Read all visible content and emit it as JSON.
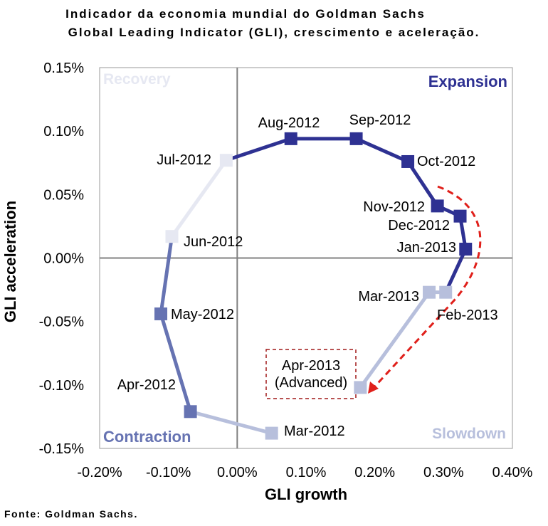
{
  "title_line1": "Indicador da economia mundial do Goldman  Sachs",
  "title_line2": "Global Leading Indicator (GLI), crescimento e aceleração.",
  "source": "Fonte: Goldman Sachs.",
  "chart_data": {
    "type": "scatter",
    "xlabel": "GLI growth",
    "ylabel": "GLI acceleration",
    "xlim": [
      -0.2,
      0.4
    ],
    "ylim": [
      -0.15,
      0.15
    ],
    "x_ticks": [
      "-0.20%",
      "-0.10%",
      "0.00%",
      "0.10%",
      "0.20%",
      "0.30%",
      "0.40%"
    ],
    "x_tick_values": [
      -0.2,
      -0.1,
      0.0,
      0.1,
      0.2,
      0.3,
      0.4
    ],
    "y_ticks": [
      "0.15%",
      "0.10%",
      "0.05%",
      "0.00%",
      "-0.05%",
      "-0.10%",
      "-0.15%"
    ],
    "y_tick_values": [
      0.15,
      0.1,
      0.05,
      0.0,
      -0.05,
      -0.1,
      -0.15
    ],
    "quadrants": {
      "recovery": "Recovery",
      "expansion": "Expansion",
      "contraction": "Contraction",
      "slowdown": "Slowdown"
    },
    "colors": {
      "recovery": "#e6e8f2",
      "expansion": "#2e3192",
      "contraction": "#6673b2",
      "slowdown": "#b7bfdc",
      "arrow": "#e0201b"
    },
    "points": [
      {
        "label": "Mar-2012",
        "x": 0.05,
        "y": -0.138,
        "phase": "slowdown"
      },
      {
        "label": "Apr-2012",
        "x": -0.068,
        "y": -0.121,
        "phase": "contraction"
      },
      {
        "label": "May-2012",
        "x": -0.111,
        "y": -0.044,
        "phase": "contraction"
      },
      {
        "label": "Jun-2012",
        "x": -0.095,
        "y": 0.017,
        "phase": "recovery"
      },
      {
        "label": "Jul-2012",
        "x": -0.016,
        "y": 0.077,
        "phase": "recovery"
      },
      {
        "label": "Aug-2012",
        "x": 0.078,
        "y": 0.094,
        "phase": "expansion"
      },
      {
        "label": "Sep-2012",
        "x": 0.173,
        "y": 0.094,
        "phase": "expansion"
      },
      {
        "label": "Oct-2012",
        "x": 0.248,
        "y": 0.076,
        "phase": "expansion"
      },
      {
        "label": "Nov-2012",
        "x": 0.291,
        "y": 0.041,
        "phase": "expansion"
      },
      {
        "label": "Dec-2012",
        "x": 0.324,
        "y": 0.033,
        "phase": "expansion"
      },
      {
        "label": "Jan-2013",
        "x": 0.332,
        "y": 0.007,
        "phase": "expansion"
      },
      {
        "label": "Feb-2013",
        "x": 0.303,
        "y": -0.027,
        "phase": "slowdown"
      },
      {
        "label": "Mar-2013",
        "x": 0.279,
        "y": -0.027,
        "phase": "slowdown"
      },
      {
        "label": "Apr-2013",
        "label2": "(Advanced)",
        "x": 0.179,
        "y": -0.102,
        "phase": "slowdown"
      }
    ]
  }
}
